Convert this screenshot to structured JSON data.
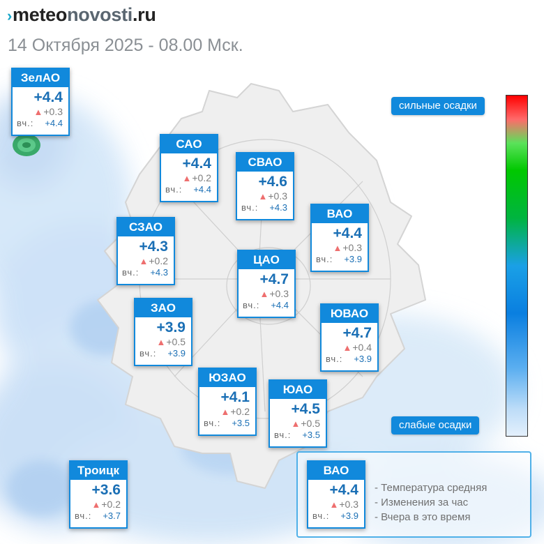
{
  "brand": {
    "arrow": "›",
    "part1": "meteo",
    "part2": "novosti",
    "part3": ".ru"
  },
  "date": "14 Октября 2025 - 08.00 Мск.",
  "districts": [
    {
      "name": "ЗелАО",
      "temp": "+4.4",
      "change": "+0.3",
      "yesterday_label": "вч.:",
      "yesterday": "+4.4"
    },
    {
      "name": "САО",
      "temp": "+4.4",
      "change": "+0.2",
      "yesterday_label": "вч.:",
      "yesterday": "+4.4"
    },
    {
      "name": "СВАО",
      "temp": "+4.6",
      "change": "+0.3",
      "yesterday_label": "вч.:",
      "yesterday": "+4.3"
    },
    {
      "name": "ВАО",
      "temp": "+4.4",
      "change": "+0.3",
      "yesterday_label": "вч.:",
      "yesterday": "+3.9"
    },
    {
      "name": "СЗАО",
      "temp": "+4.3",
      "change": "+0.2",
      "yesterday_label": "вч.:",
      "yesterday": "+4.3"
    },
    {
      "name": "ЦАО",
      "temp": "+4.7",
      "change": "+0.3",
      "yesterday_label": "вч.:",
      "yesterday": "+4.4"
    },
    {
      "name": "ЗАО",
      "temp": "+3.9",
      "change": "+0.5",
      "yesterday_label": "вч.:",
      "yesterday": "+3.9"
    },
    {
      "name": "ЮВАО",
      "temp": "+4.7",
      "change": "+0.4",
      "yesterday_label": "вч.:",
      "yesterday": "+3.9"
    },
    {
      "name": "ЮЗАО",
      "temp": "+4.1",
      "change": "+0.2",
      "yesterday_label": "вч.:",
      "yesterday": "+3.5"
    },
    {
      "name": "ЮАО",
      "temp": "+4.5",
      "change": "+0.5",
      "yesterday_label": "вч.:",
      "yesterday": "+3.5"
    },
    {
      "name": "Троицк",
      "temp": "+3.6",
      "change": "+0.2",
      "yesterday_label": "вч.:",
      "yesterday": "+3.7"
    }
  ],
  "scale": {
    "top_label": "сильные осадки",
    "bottom_label": "слабые осадки"
  },
  "legend": {
    "sample": {
      "name": "ВАО",
      "temp": "+4.4",
      "change": "+0.3",
      "yesterday_label": "вч.:",
      "yesterday": "+3.9"
    },
    "lines": [
      "- Температура средняя",
      "- Изменения за час",
      "- Вчера в это время"
    ]
  },
  "colors": {
    "accent": "#1189dc",
    "temp_text": "#1a6fb5",
    "triangle": "#ee6f6f",
    "precip_light": "#bcdcf8"
  }
}
